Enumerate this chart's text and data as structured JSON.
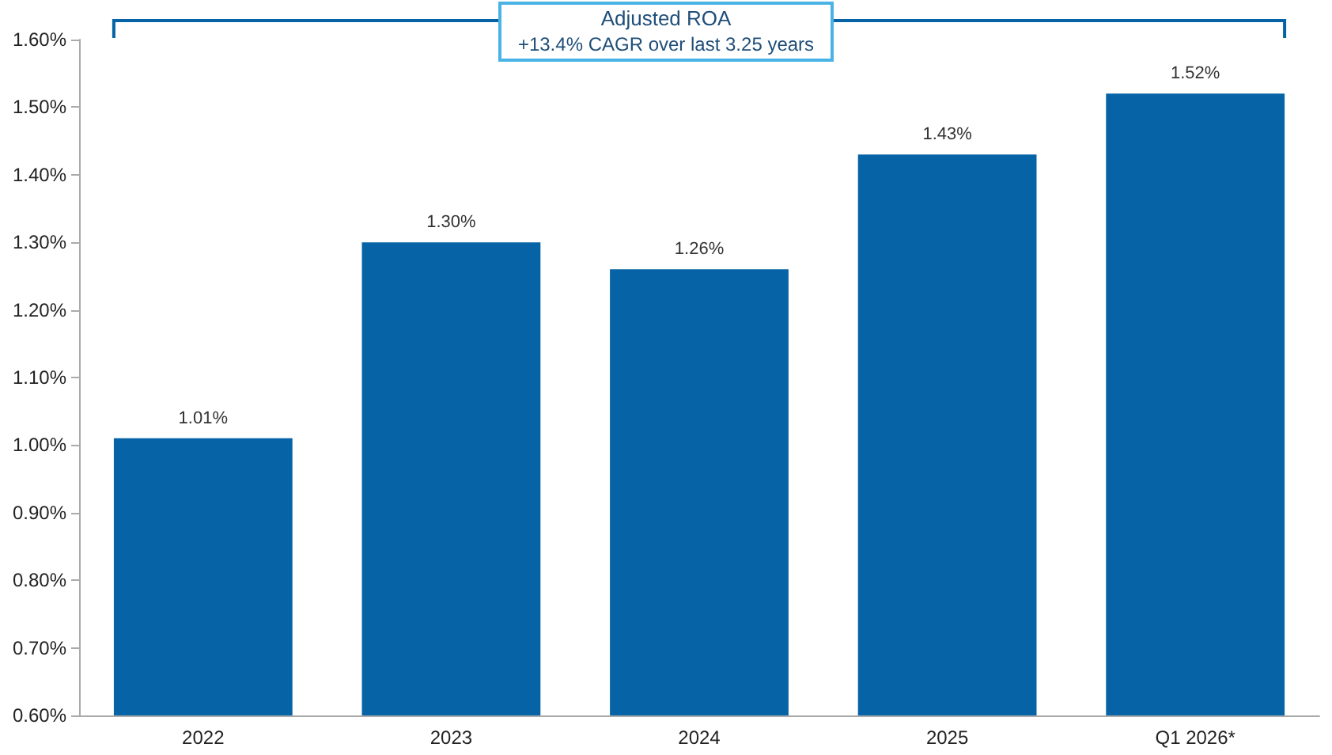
{
  "chart_data": {
    "type": "bar",
    "title": "Adjusted ROA",
    "subtitle": "+13.4% CAGR over last 3.25 years",
    "categories": [
      "2022",
      "2023",
      "2024",
      "2025",
      "Q1 2026*"
    ],
    "values": [
      1.01,
      1.3,
      1.26,
      1.43,
      1.52
    ],
    "value_labels": [
      "1.01%",
      "1.30%",
      "1.26%",
      "1.43%",
      "1.52%"
    ],
    "color": "#0563a6",
    "ylim": [
      0.6,
      1.6
    ],
    "yticks": [
      {
        "value": 0.6,
        "label": "0.60%"
      },
      {
        "value": 0.7,
        "label": "0.70%"
      },
      {
        "value": 0.8,
        "label": "0.80%"
      },
      {
        "value": 0.9,
        "label": "0.90%"
      },
      {
        "value": 1.0,
        "label": "1.00%"
      },
      {
        "value": 1.1,
        "label": "1.10%"
      },
      {
        "value": 1.2,
        "label": "1.20%"
      },
      {
        "value": 1.3,
        "label": "1.30%"
      },
      {
        "value": 1.4,
        "label": "1.40%"
      },
      {
        "value": 1.5,
        "label": "1.50%"
      },
      {
        "value": 1.6,
        "label": "1.60%"
      }
    ],
    "grid": false
  }
}
